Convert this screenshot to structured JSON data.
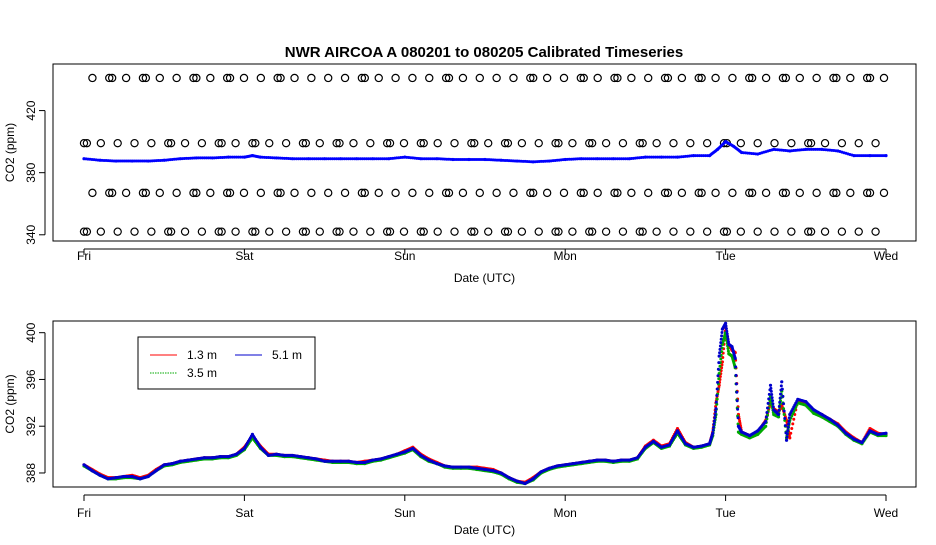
{
  "title": "NWR   AIRCOA  A   080201  to  080205   Calibrated Timeseries",
  "chart_data": [
    {
      "type": "scatter",
      "xlabel": "Date (UTC)",
      "ylabel": "CO2 (ppm)",
      "xlim": [
        0,
        5
      ],
      "ylim": [
        336,
        450
      ],
      "x_ticks": [
        {
          "value": 0,
          "label": "Fri"
        },
        {
          "value": 1,
          "label": "Sat"
        },
        {
          "value": 2,
          "label": "Sun"
        },
        {
          "value": 3,
          "label": "Mon"
        },
        {
          "value": 4,
          "label": "Tue"
        },
        {
          "value": 5,
          "label": "Wed"
        }
      ],
      "y_ticks": [
        {
          "value": 340,
          "label": "340"
        },
        {
          "value": 380,
          "label": "380"
        },
        {
          "value": 420,
          "label": "420"
        }
      ],
      "reference_levels": [
        {
          "value": 342,
          "color": "#000000"
        },
        {
          "value": 367,
          "color": "#000000"
        },
        {
          "value": 399,
          "color": "#000000"
        },
        {
          "value": 441,
          "color": "#000000"
        }
      ],
      "reference_point_spacing_days": 0.105,
      "series": [
        {
          "color": "#0000ff",
          "x": [
            0,
            0.1,
            0.2,
            0.3,
            0.4,
            0.5,
            0.6,
            0.7,
            0.8,
            0.9,
            1.0,
            1.05,
            1.1,
            1.2,
            1.3,
            1.4,
            1.5,
            1.6,
            1.7,
            1.8,
            1.9,
            2.0,
            2.1,
            2.2,
            2.3,
            2.4,
            2.5,
            2.6,
            2.7,
            2.8,
            2.9,
            3.0,
            3.1,
            3.2,
            3.3,
            3.4,
            3.5,
            3.6,
            3.7,
            3.8,
            3.9,
            3.95,
            4.0,
            4.05,
            4.1,
            4.2,
            4.3,
            4.4,
            4.5,
            4.6,
            4.7,
            4.8,
            4.9,
            5.0
          ],
          "y": [
            389,
            388,
            387.5,
            387.5,
            387.5,
            388,
            389,
            389.5,
            389.5,
            390,
            390,
            391,
            390,
            389.5,
            389,
            389,
            389,
            389,
            389,
            389,
            389,
            390,
            389,
            389,
            388.5,
            388.5,
            388.5,
            388,
            387.5,
            387,
            387.5,
            388.5,
            389,
            389,
            389,
            389,
            390,
            390,
            390,
            391,
            391,
            395,
            400,
            397,
            393,
            392,
            395,
            394,
            395,
            395,
            394,
            391,
            391,
            391
          ]
        }
      ]
    },
    {
      "type": "scatter",
      "xlabel": "Date (UTC)",
      "ylabel": "CO2 (ppm)",
      "xlim": [
        0,
        5
      ],
      "ylim": [
        386.8,
        401
      ],
      "x_ticks": [
        {
          "value": 0,
          "label": "Fri"
        },
        {
          "value": 1,
          "label": "Sat"
        },
        {
          "value": 2,
          "label": "Sun"
        },
        {
          "value": 3,
          "label": "Mon"
        },
        {
          "value": 4,
          "label": "Tue"
        },
        {
          "value": 5,
          "label": "Wed"
        }
      ],
      "y_ticks": [
        {
          "value": 388,
          "label": "388"
        },
        {
          "value": 392,
          "label": "392"
        },
        {
          "value": 396,
          "label": "396"
        },
        {
          "value": 400,
          "label": "400"
        }
      ],
      "legend": {
        "placement": "top-left",
        "entries": [
          {
            "label": "1.3 m",
            "color": "#ff0000"
          },
          {
            "label": "5.1 m",
            "color": "#0000cc"
          },
          {
            "label": "3.5 m",
            "color": "#00aa00"
          }
        ]
      },
      "series": [
        {
          "name": "1.3 m",
          "color": "#ff0000",
          "x": [
            0.0,
            0.05,
            0.1,
            0.15,
            0.2,
            0.25,
            0.3,
            0.35,
            0.4,
            0.45,
            0.5,
            0.55,
            0.6,
            0.65,
            0.7,
            0.75,
            0.8,
            0.85,
            0.9,
            0.95,
            1.0,
            1.05,
            1.1,
            1.15,
            1.2,
            1.25,
            1.3,
            1.35,
            1.4,
            1.45,
            1.5,
            1.55,
            1.6,
            1.65,
            1.7,
            1.75,
            1.8,
            1.85,
            1.9,
            1.95,
            2.0,
            2.05,
            2.1,
            2.15,
            2.2,
            2.25,
            2.3,
            2.35,
            2.4,
            2.45,
            2.5,
            2.55,
            2.6,
            2.65,
            2.7,
            2.75,
            2.8,
            2.85,
            2.9,
            2.95,
            3.0,
            3.05,
            3.1,
            3.15,
            3.2,
            3.25,
            3.3,
            3.35,
            3.4,
            3.45,
            3.5,
            3.55,
            3.6,
            3.65,
            3.7,
            3.75,
            3.8,
            3.85,
            3.9,
            3.92,
            3.94,
            3.96,
            3.98,
            4.0,
            4.02,
            4.04,
            4.06,
            4.08,
            4.1,
            4.15,
            4.2,
            4.25,
            4.28,
            4.3,
            4.33,
            4.35,
            4.38,
            4.4,
            4.45,
            4.5,
            4.55,
            4.6,
            4.65,
            4.7,
            4.75,
            4.8,
            4.85,
            4.9,
            4.95,
            5.0
          ],
          "y": [
            388.7,
            388.3,
            387.9,
            387.6,
            387.6,
            387.7,
            387.8,
            387.6,
            387.8,
            388.3,
            388.7,
            388.8,
            389.0,
            389.1,
            389.2,
            389.3,
            389.3,
            389.4,
            389.4,
            389.6,
            390.2,
            391.2,
            390.3,
            389.6,
            389.6,
            389.5,
            389.5,
            389.4,
            389.3,
            389.2,
            389.1,
            389.0,
            389.0,
            389.0,
            388.9,
            389.0,
            389.1,
            389.2,
            389.4,
            389.6,
            389.9,
            390.2,
            389.6,
            389.2,
            388.9,
            388.6,
            388.5,
            388.5,
            388.5,
            388.5,
            388.4,
            388.3,
            388.0,
            387.6,
            387.3,
            387.2,
            387.6,
            388.1,
            388.4,
            388.6,
            388.7,
            388.8,
            388.9,
            389.0,
            389.1,
            389.1,
            389.0,
            389.1,
            389.1,
            389.3,
            390.3,
            390.8,
            390.3,
            390.5,
            391.8,
            390.6,
            390.2,
            390.3,
            390.5,
            391.5,
            394.0,
            395.5,
            397.5,
            400.5,
            399.0,
            398.5,
            398.3,
            393.0,
            391.5,
            391.2,
            391.5,
            392.5,
            394.0,
            393.5,
            393.2,
            393.8,
            392.5,
            391.0,
            394.2,
            394.0,
            393.3,
            393.0,
            392.6,
            392.2,
            391.5,
            391.0,
            390.6,
            391.8,
            391.4,
            391.3
          ]
        },
        {
          "name": "3.5 m",
          "color": "#00aa00",
          "x": [
            0.0,
            0.05,
            0.1,
            0.15,
            0.2,
            0.25,
            0.3,
            0.35,
            0.4,
            0.45,
            0.5,
            0.55,
            0.6,
            0.65,
            0.7,
            0.75,
            0.8,
            0.85,
            0.9,
            0.95,
            1.0,
            1.05,
            1.1,
            1.15,
            1.2,
            1.25,
            1.3,
            1.35,
            1.4,
            1.45,
            1.5,
            1.55,
            1.6,
            1.65,
            1.7,
            1.75,
            1.8,
            1.85,
            1.9,
            1.95,
            2.0,
            2.05,
            2.1,
            2.15,
            2.2,
            2.25,
            2.3,
            2.35,
            2.4,
            2.45,
            2.5,
            2.55,
            2.6,
            2.65,
            2.7,
            2.75,
            2.8,
            2.85,
            2.9,
            2.95,
            3.0,
            3.05,
            3.1,
            3.15,
            3.2,
            3.25,
            3.3,
            3.35,
            3.4,
            3.45,
            3.5,
            3.55,
            3.6,
            3.65,
            3.7,
            3.75,
            3.8,
            3.85,
            3.9,
            3.92,
            3.94,
            3.96,
            3.98,
            4.0,
            4.02,
            4.04,
            4.06,
            4.08,
            4.1,
            4.15,
            4.2,
            4.25,
            4.28,
            4.3,
            4.33,
            4.35,
            4.38,
            4.4,
            4.45,
            4.5,
            4.55,
            4.6,
            4.65,
            4.7,
            4.75,
            4.8,
            4.85,
            4.9,
            4.95,
            5.0
          ],
          "y": [
            388.6,
            388.2,
            387.8,
            387.5,
            387.5,
            387.6,
            387.6,
            387.5,
            387.7,
            388.2,
            388.6,
            388.7,
            388.9,
            389.0,
            389.1,
            389.2,
            389.2,
            389.3,
            389.3,
            389.5,
            390.0,
            391.0,
            390.1,
            389.5,
            389.5,
            389.4,
            389.4,
            389.3,
            389.2,
            389.1,
            389.0,
            388.9,
            388.9,
            388.9,
            388.8,
            388.8,
            389.0,
            389.1,
            389.3,
            389.5,
            389.7,
            390.0,
            389.4,
            389.0,
            388.8,
            388.5,
            388.4,
            388.4,
            388.4,
            388.3,
            388.2,
            388.1,
            387.9,
            387.5,
            387.2,
            387.1,
            387.4,
            388.0,
            388.3,
            388.5,
            388.6,
            388.7,
            388.8,
            388.9,
            389.0,
            389.0,
            388.9,
            389.0,
            389.0,
            389.2,
            390.1,
            390.6,
            390.1,
            390.3,
            391.4,
            390.4,
            390.1,
            390.2,
            390.4,
            391.2,
            393.0,
            396.5,
            399.0,
            400.0,
            398.2,
            398.0,
            397.0,
            391.5,
            391.3,
            391.0,
            391.3,
            392.0,
            394.5,
            393.0,
            392.8,
            395.0,
            391.0,
            392.5,
            394.0,
            393.8,
            393.1,
            392.8,
            392.4,
            392.0,
            391.3,
            390.8,
            390.5,
            391.5,
            391.2,
            391.2
          ]
        },
        {
          "name": "5.1 m",
          "color": "#0000cc",
          "x": [
            0.0,
            0.05,
            0.1,
            0.15,
            0.2,
            0.25,
            0.3,
            0.35,
            0.4,
            0.45,
            0.5,
            0.55,
            0.6,
            0.65,
            0.7,
            0.75,
            0.8,
            0.85,
            0.9,
            0.95,
            1.0,
            1.05,
            1.1,
            1.15,
            1.2,
            1.25,
            1.3,
            1.35,
            1.4,
            1.45,
            1.5,
            1.55,
            1.6,
            1.65,
            1.7,
            1.75,
            1.8,
            1.85,
            1.9,
            1.95,
            2.0,
            2.05,
            2.1,
            2.15,
            2.2,
            2.25,
            2.3,
            2.35,
            2.4,
            2.45,
            2.5,
            2.55,
            2.6,
            2.65,
            2.7,
            2.75,
            2.8,
            2.85,
            2.9,
            2.95,
            3.0,
            3.05,
            3.1,
            3.15,
            3.2,
            3.25,
            3.3,
            3.35,
            3.4,
            3.45,
            3.5,
            3.55,
            3.6,
            3.65,
            3.7,
            3.75,
            3.8,
            3.85,
            3.9,
            3.92,
            3.94,
            3.96,
            3.98,
            4.0,
            4.02,
            4.04,
            4.06,
            4.08,
            4.1,
            4.15,
            4.2,
            4.25,
            4.28,
            4.3,
            4.33,
            4.35,
            4.38,
            4.4,
            4.45,
            4.5,
            4.55,
            4.6,
            4.65,
            4.7,
            4.75,
            4.8,
            4.85,
            4.9,
            4.95,
            5.0
          ],
          "y": [
            388.7,
            388.2,
            387.8,
            387.5,
            387.6,
            387.7,
            387.7,
            387.5,
            387.7,
            388.2,
            388.7,
            388.8,
            389.0,
            389.1,
            389.2,
            389.3,
            389.3,
            389.4,
            389.4,
            389.6,
            390.1,
            391.3,
            390.2,
            389.5,
            389.6,
            389.5,
            389.5,
            389.4,
            389.3,
            389.2,
            389.0,
            389.0,
            389.0,
            389.0,
            388.9,
            388.9,
            389.1,
            389.2,
            389.4,
            389.6,
            389.8,
            390.1,
            389.5,
            389.1,
            388.8,
            388.6,
            388.5,
            388.5,
            388.5,
            388.4,
            388.3,
            388.2,
            388.0,
            387.6,
            387.3,
            387.1,
            387.5,
            388.1,
            388.4,
            388.6,
            388.7,
            388.8,
            388.9,
            389.0,
            389.1,
            389.1,
            389.0,
            389.1,
            389.1,
            389.3,
            390.2,
            390.7,
            390.2,
            390.4,
            391.6,
            390.5,
            390.2,
            390.3,
            390.5,
            391.4,
            393.5,
            398.0,
            400.3,
            400.8,
            399.0,
            398.8,
            397.8,
            392.0,
            391.5,
            391.2,
            391.6,
            392.4,
            395.5,
            393.4,
            393.0,
            395.8,
            390.8,
            393.0,
            394.3,
            394.1,
            393.4,
            393.0,
            392.6,
            392.1,
            391.4,
            390.9,
            390.6,
            391.6,
            391.3,
            391.4
          ]
        }
      ]
    }
  ]
}
